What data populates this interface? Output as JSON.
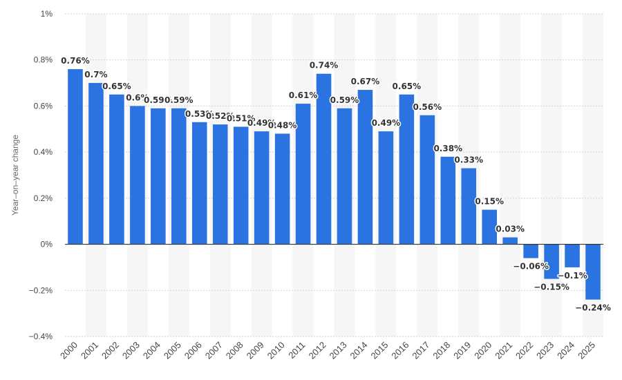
{
  "chart_data": {
    "type": "bar",
    "categories": [
      "2000",
      "2001",
      "2002",
      "2003",
      "2004",
      "2005",
      "2006",
      "2007",
      "2008",
      "2009",
      "2010",
      "2011",
      "2012",
      "2013",
      "2014",
      "2015",
      "2016",
      "2017",
      "2018",
      "2019",
      "2020",
      "2021",
      "2022",
      "2023",
      "2024",
      "2025"
    ],
    "values": [
      0.76,
      0.7,
      0.65,
      0.6,
      0.59,
      0.59,
      0.53,
      0.52,
      0.51,
      0.49,
      0.48,
      0.61,
      0.74,
      0.59,
      0.67,
      0.49,
      0.65,
      0.56,
      0.38,
      0.33,
      0.15,
      0.03,
      -0.06,
      -0.15,
      -0.1,
      -0.24
    ],
    "data_labels": [
      "0.76%",
      "0.7%",
      "0.65%",
      "0.6%",
      "0.59%",
      "0.59%",
      "0.53%",
      "0.52%",
      "0.51%",
      "0.49%",
      "0.48%",
      "0.61%",
      "0.74%",
      "0.59%",
      "0.67%",
      "0.49%",
      "0.65%",
      "0.56%",
      "0.38%",
      "0.33%",
      "0.15%",
      "0.03%",
      "-0.06%",
      "-0.15%",
      "-0.1%",
      "-0.24%"
    ],
    "title": "",
    "xlabel": "",
    "ylabel": "Year-on-year change",
    "ylim": [
      -0.4,
      1.0
    ],
    "yticks": [
      1.0,
      0.8,
      0.6,
      0.4,
      0.2,
      0,
      -0.2,
      -0.4
    ],
    "ytick_labels": [
      "1%",
      "0.8%",
      "0.6%",
      "0.4%",
      "0.2%",
      "0%",
      "-0.2%",
      "-0.4%"
    ],
    "grid": "horizontal dotted",
    "alternating_column_shading": true,
    "bar_color": "#2a73e0",
    "legend": "none"
  }
}
